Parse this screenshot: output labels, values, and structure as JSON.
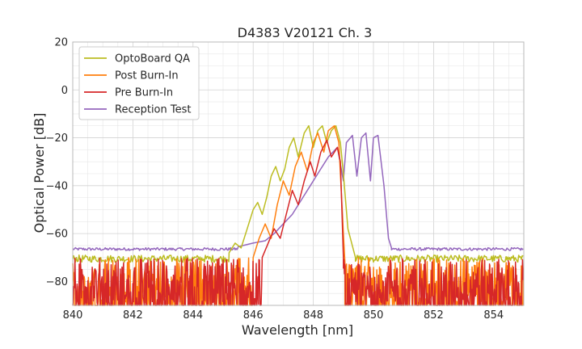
{
  "chart_data": {
    "type": "line",
    "title": "D4383 V20121 Ch. 3",
    "xlabel": "Wavelength [nm]",
    "ylabel": "Optical Power [dB]",
    "xlim": [
      840,
      855
    ],
    "ylim": [
      -90,
      20
    ],
    "xticks": [
      840,
      842,
      844,
      846,
      848,
      850,
      852,
      854
    ],
    "yticks": [
      20,
      0,
      -20,
      -40,
      -60,
      -80
    ],
    "grid": true,
    "legend_position": "top-left",
    "series": [
      {
        "name": "OptoBoard QA",
        "color": "#bcbd22",
        "noise_floor": -70.5,
        "noise_amplitude": 1.5,
        "noise_region": [
          [
            840.0,
            845.2
          ],
          [
            849.4,
            855.0
          ]
        ],
        "points": [
          [
            845.2,
            -68
          ],
          [
            845.4,
            -64
          ],
          [
            845.6,
            -66
          ],
          [
            845.8,
            -58
          ],
          [
            846.0,
            -50
          ],
          [
            846.15,
            -47
          ],
          [
            846.3,
            -52
          ],
          [
            846.45,
            -45
          ],
          [
            846.6,
            -36
          ],
          [
            846.75,
            -32
          ],
          [
            846.9,
            -38
          ],
          [
            847.05,
            -33
          ],
          [
            847.2,
            -24
          ],
          [
            847.35,
            -20
          ],
          [
            847.5,
            -28
          ],
          [
            847.7,
            -18
          ],
          [
            847.85,
            -15
          ],
          [
            848.0,
            -24
          ],
          [
            848.15,
            -17
          ],
          [
            848.3,
            -15
          ],
          [
            848.45,
            -22
          ],
          [
            848.6,
            -17
          ],
          [
            848.75,
            -15
          ],
          [
            848.9,
            -22
          ],
          [
            849.0,
            -35
          ],
          [
            849.15,
            -58
          ],
          [
            849.4,
            -70
          ]
        ]
      },
      {
        "name": "Post Burn-In",
        "color": "#ff7f0e",
        "noise_floor": -80,
        "noise_amplitude": 10,
        "noise_region": [
          [
            840.0,
            846.0
          ],
          [
            849.05,
            855.0
          ]
        ],
        "points": [
          [
            846.0,
            -70
          ],
          [
            846.2,
            -62
          ],
          [
            846.4,
            -56
          ],
          [
            846.6,
            -62
          ],
          [
            846.8,
            -48
          ],
          [
            847.0,
            -38
          ],
          [
            847.2,
            -44
          ],
          [
            847.4,
            -32
          ],
          [
            847.6,
            -26
          ],
          [
            847.8,
            -34
          ],
          [
            848.0,
            -22
          ],
          [
            848.15,
            -18
          ],
          [
            848.35,
            -26
          ],
          [
            848.5,
            -17
          ],
          [
            848.7,
            -15
          ],
          [
            848.85,
            -22
          ],
          [
            849.0,
            -60
          ],
          [
            849.05,
            -72
          ]
        ]
      },
      {
        "name": "Pre Burn-In",
        "color": "#d62728",
        "noise_floor": -80,
        "noise_amplitude": 10,
        "noise_region": [
          [
            840.0,
            846.3
          ],
          [
            849.0,
            855.0
          ]
        ],
        "points": [
          [
            846.3,
            -70
          ],
          [
            846.5,
            -64
          ],
          [
            846.7,
            -58
          ],
          [
            846.9,
            -62
          ],
          [
            847.1,
            -52
          ],
          [
            847.3,
            -42
          ],
          [
            847.5,
            -48
          ],
          [
            847.7,
            -38
          ],
          [
            847.9,
            -30
          ],
          [
            848.05,
            -36
          ],
          [
            848.25,
            -26
          ],
          [
            848.45,
            -21
          ],
          [
            848.6,
            -28
          ],
          [
            848.8,
            -24
          ],
          [
            848.9,
            -30
          ],
          [
            849.0,
            -70
          ]
        ]
      },
      {
        "name": "Reception Test",
        "color": "#9467bd",
        "noise_floor": -66.5,
        "noise_amplitude": 0.6,
        "noise_region": [
          [
            840.0,
            845.5
          ],
          [
            850.6,
            855.0
          ]
        ],
        "points": [
          [
            845.5,
            -65.5
          ],
          [
            846.0,
            -64
          ],
          [
            846.4,
            -63
          ],
          [
            846.7,
            -60
          ],
          [
            847.0,
            -56
          ],
          [
            847.3,
            -52
          ],
          [
            847.6,
            -46
          ],
          [
            847.9,
            -40
          ],
          [
            848.2,
            -34
          ],
          [
            848.5,
            -28
          ],
          [
            848.8,
            -24
          ],
          [
            849.0,
            -38
          ],
          [
            849.1,
            -22
          ],
          [
            849.3,
            -19
          ],
          [
            849.45,
            -36
          ],
          [
            849.6,
            -20
          ],
          [
            849.75,
            -18
          ],
          [
            849.9,
            -38
          ],
          [
            850.0,
            -20
          ],
          [
            850.15,
            -19
          ],
          [
            850.35,
            -40
          ],
          [
            850.5,
            -62
          ],
          [
            850.6,
            -66
          ]
        ]
      }
    ]
  }
}
